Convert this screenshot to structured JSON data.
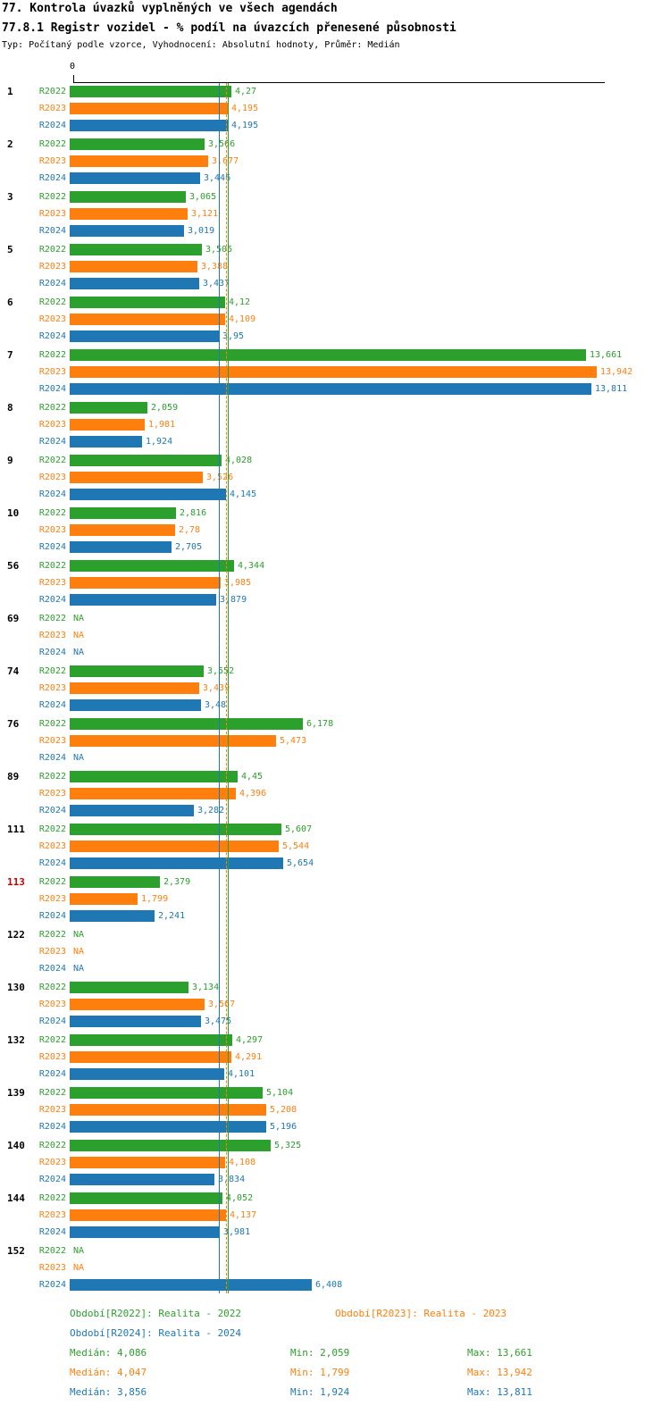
{
  "title": "77. Kontrola úvazků vyplněných ve všech agendách",
  "subtitle": "77.8.1 Registr vozidel - % podíl na úvazcích přenesené působnosti",
  "meta": "Typ: Počítaný podle vzorce, Vyhodnocení: Absolutní hodnoty, Průměr: Medián",
  "axis": {
    "zero_label": "0"
  },
  "colors": {
    "r2022": "#2ca02c",
    "r2023": "#ff7f0e",
    "r2024": "#1f77b4",
    "alert": "#cc0000"
  },
  "chart_data": {
    "type": "bar",
    "orientation": "horizontal",
    "series_labels": [
      "R2022",
      "R2023",
      "R2024"
    ],
    "xlim": [
      0,
      14.07
    ],
    "medians": {
      "R2022": 4.086,
      "R2023": 4.047,
      "R2024": 3.856
    },
    "groups": [
      {
        "id": "1",
        "highlight": false,
        "values": [
          4.27,
          4.195,
          4.195
        ],
        "labels": [
          "4,27",
          "4,195",
          "4,195"
        ]
      },
      {
        "id": "2",
        "highlight": false,
        "values": [
          3.566,
          3.677,
          3.446
        ],
        "labels": [
          "3,566",
          "3,677",
          "3,446"
        ]
      },
      {
        "id": "3",
        "highlight": false,
        "values": [
          3.065,
          3.121,
          3.019
        ],
        "labels": [
          "3,065",
          "3,121",
          "3,019"
        ]
      },
      {
        "id": "5",
        "highlight": false,
        "values": [
          3.505,
          3.388,
          3.437
        ],
        "labels": [
          "3,505",
          "3,388",
          "3,437"
        ]
      },
      {
        "id": "6",
        "highlight": false,
        "values": [
          4.12,
          4.109,
          3.95
        ],
        "labels": [
          "4,12",
          "4,109",
          "3,95"
        ]
      },
      {
        "id": "7",
        "highlight": false,
        "values": [
          13.661,
          13.942,
          13.811
        ],
        "labels": [
          "13,661",
          "13,942",
          "13,811"
        ]
      },
      {
        "id": "8",
        "highlight": false,
        "values": [
          2.059,
          1.981,
          1.924
        ],
        "labels": [
          "2,059",
          "1,981",
          "1,924"
        ]
      },
      {
        "id": "9",
        "highlight": false,
        "values": [
          4.028,
          3.526,
          4.145
        ],
        "labels": [
          "4,028",
          "3,526",
          "4,145"
        ]
      },
      {
        "id": "10",
        "highlight": false,
        "values": [
          2.816,
          2.78,
          2.705
        ],
        "labels": [
          "2,816",
          "2,78",
          "2,705"
        ]
      },
      {
        "id": "56",
        "highlight": false,
        "values": [
          4.344,
          3.985,
          3.879
        ],
        "labels": [
          "4,344",
          "3,985",
          "3,879"
        ]
      },
      {
        "id": "69",
        "highlight": false,
        "values": [
          null,
          null,
          null
        ],
        "labels": [
          "NA",
          "NA",
          "NA"
        ]
      },
      {
        "id": "74",
        "highlight": false,
        "values": [
          3.552,
          3.439,
          3.48
        ],
        "labels": [
          "3,552",
          "3,439",
          "3,48"
        ]
      },
      {
        "id": "76",
        "highlight": false,
        "values": [
          6.178,
          5.473,
          null
        ],
        "labels": [
          "6,178",
          "5,473",
          "NA"
        ]
      },
      {
        "id": "89",
        "highlight": false,
        "values": [
          4.45,
          4.396,
          3.282
        ],
        "labels": [
          "4,45",
          "4,396",
          "3,282"
        ]
      },
      {
        "id": "111",
        "highlight": false,
        "values": [
          5.607,
          5.544,
          5.654
        ],
        "labels": [
          "5,607",
          "5,544",
          "5,654"
        ]
      },
      {
        "id": "113",
        "highlight": true,
        "values": [
          2.379,
          1.799,
          2.241
        ],
        "labels": [
          "2,379",
          "1,799",
          "2,241"
        ]
      },
      {
        "id": "122",
        "highlight": false,
        "values": [
          null,
          null,
          null
        ],
        "labels": [
          "NA",
          "NA",
          "NA"
        ]
      },
      {
        "id": "130",
        "highlight": false,
        "values": [
          3.134,
          3.567,
          3.475
        ],
        "labels": [
          "3,134",
          "3,567",
          "3,475"
        ]
      },
      {
        "id": "132",
        "highlight": false,
        "values": [
          4.297,
          4.291,
          4.101
        ],
        "labels": [
          "4,297",
          "4,291",
          "4,101"
        ]
      },
      {
        "id": "139",
        "highlight": false,
        "values": [
          5.104,
          5.208,
          5.196
        ],
        "labels": [
          "5,104",
          "5,208",
          "5,196"
        ]
      },
      {
        "id": "140",
        "highlight": false,
        "values": [
          5.325,
          4.108,
          3.834
        ],
        "labels": [
          "5,325",
          "4,108",
          "3,834"
        ]
      },
      {
        "id": "144",
        "highlight": false,
        "values": [
          4.052,
          4.137,
          3.981
        ],
        "labels": [
          "4,052",
          "4,137",
          "3,981"
        ]
      },
      {
        "id": "152",
        "highlight": false,
        "values": [
          null,
          null,
          6.408
        ],
        "labels": [
          "NA",
          "NA",
          "6,408"
        ]
      }
    ]
  },
  "legend": {
    "r2022": "Období[R2022]: Realita - 2022",
    "r2023": "Období[R2023]: Realita - 2023",
    "r2024": "Období[R2024]: Realita - 2024"
  },
  "stats": [
    {
      "median": "Medián: 4,086",
      "min": "Min: 2,059",
      "max": "Max: 13,661"
    },
    {
      "median": "Medián: 4,047",
      "min": "Min: 1,799",
      "max": "Max: 13,942"
    },
    {
      "median": "Medián: 3,856",
      "min": "Min: 1,924",
      "max": "Max: 13,811"
    }
  ]
}
